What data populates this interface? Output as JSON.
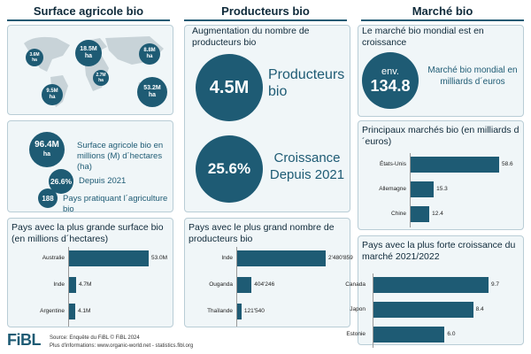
{
  "columns": {
    "surface": "Surface agricole bio",
    "producteurs": "Producteurs bio",
    "marche": "Marché bio"
  },
  "map": {
    "regions": [
      {
        "value": "3.6M",
        "unit": "ha"
      },
      {
        "value": "18.5M",
        "unit": "ha"
      },
      {
        "value": "8.8M",
        "unit": "ha"
      },
      {
        "value": "2.7M",
        "unit": "ha"
      },
      {
        "value": "9.5M",
        "unit": "ha"
      },
      {
        "value": "53.2M",
        "unit": "ha"
      }
    ]
  },
  "stats": {
    "surface_value": "96.4M",
    "surface_unit": "ha",
    "surface_text": "Surface agricole bio en millions (M) d´hectares (ha)",
    "growth_value": "26.6%",
    "growth_text": "Depuis 2021",
    "countries_value": "188",
    "countries_text": "Pays pratiquant l´agriculture bio"
  },
  "producers": {
    "title": "Augmentation du nombre de producteurs bio",
    "value": "4.5M",
    "label": "Producteurs bio",
    "growth_value": "25.6%",
    "growth_label": "Croissance Depuis 2021"
  },
  "market": {
    "title": "Le marché bio mondial est en croissance",
    "prefix": "env.",
    "value": "134.8",
    "label": "Marché bio mondial en milliards d´euros"
  },
  "chart_data": [
    {
      "type": "bar",
      "title": "Pays avec la plus grande surface bio (en millions d´hectares)",
      "categories": [
        "Australie",
        "Inde",
        "Argentine"
      ],
      "values": [
        53.0,
        4.7,
        4.1
      ],
      "labels": [
        "53.0M",
        "4.7M",
        "4.1M"
      ]
    },
    {
      "type": "bar",
      "title": "Pays avec le plus grand nombre de producteurs bio",
      "categories": [
        "Inde",
        "Ouganda",
        "Thaïlande"
      ],
      "values": [
        2480859,
        404246,
        121540
      ],
      "labels": [
        "2'480'859",
        "404'246",
        "121'540"
      ]
    },
    {
      "type": "bar",
      "title": "Principaux marchés bio (en milliards d´euros)",
      "categories": [
        "États-Unis",
        "Allemagne",
        "Chine"
      ],
      "values": [
        58.6,
        15.3,
        12.4
      ],
      "labels": [
        "58.6",
        "15.3",
        "12.4"
      ]
    },
    {
      "type": "bar",
      "title": "Pays avec la plus forte croissance du marché 2021/2022",
      "categories": [
        "Canada",
        "Japon",
        "Estonie"
      ],
      "values": [
        9.7,
        8.4,
        6.0
      ],
      "labels": [
        "9.7",
        "8.4",
        "6.0"
      ]
    }
  ],
  "footer": {
    "logo": "FiBL",
    "source": "Source: Enquête du FiBL © FiBL 2024",
    "info": "Plus d'informations: www.organic-world.net - statistics.fibl.org"
  },
  "colors": {
    "accent": "#1e5b74",
    "panel": "#f0f6f8"
  }
}
